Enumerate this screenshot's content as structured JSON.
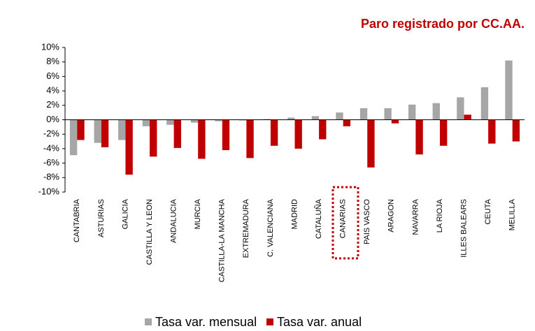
{
  "chart_data": {
    "type": "bar",
    "title": "Paro registrado por CC.AA.",
    "categories": [
      "CANTABRIA",
      "ASTURIAS",
      "GALICIA",
      "CASTILLA Y LEON",
      "ANDALUCIA",
      "MURCIA",
      "CASTILLA-LA MANCHA",
      "EXTREMADURA",
      "C. VALENCIANA",
      "MADRID",
      "CATALUÑA",
      "CANARIAS",
      "PAIS VASCO",
      "ARAGON",
      "NAVARRA",
      "LA RIOJA",
      "ILLES BALEARS",
      "CEUTA",
      "MELILLA"
    ],
    "series": [
      {
        "name": "Tasa var. mensual",
        "color": "#a6a6a6",
        "values": [
          -4.9,
          -3.2,
          -2.8,
          -0.9,
          -0.7,
          -0.4,
          -0.2,
          -0.1,
          0.1,
          0.3,
          0.5,
          1.0,
          1.6,
          1.6,
          2.1,
          2.3,
          3.1,
          4.5,
          8.2
        ]
      },
      {
        "name": "Tasa var. anual",
        "color": "#c00000",
        "values": [
          -2.8,
          -3.8,
          -7.6,
          -5.1,
          -3.9,
          -5.4,
          -4.2,
          -5.3,
          -3.6,
          -4.0,
          -2.7,
          -0.9,
          -6.6,
          -0.5,
          -4.8,
          -3.6,
          0.7,
          -3.3,
          -3.0
        ]
      }
    ],
    "ylim": [
      -10,
      10
    ],
    "yticks": [
      {
        "value": -10,
        "label": "-10%"
      },
      {
        "value": -8,
        "label": "-8%"
      },
      {
        "value": -6,
        "label": "-6%"
      },
      {
        "value": -4,
        "label": "-4%"
      },
      {
        "value": -2,
        "label": "-2%"
      },
      {
        "value": 0,
        "label": "0%"
      },
      {
        "value": 2,
        "label": "2%"
      },
      {
        "value": 4,
        "label": "4%"
      },
      {
        "value": 6,
        "label": "6%"
      },
      {
        "value": 8,
        "label": "8%"
      },
      {
        "value": 10,
        "label": "10%"
      }
    ],
    "grid": false,
    "legend": "bottom"
  }
}
